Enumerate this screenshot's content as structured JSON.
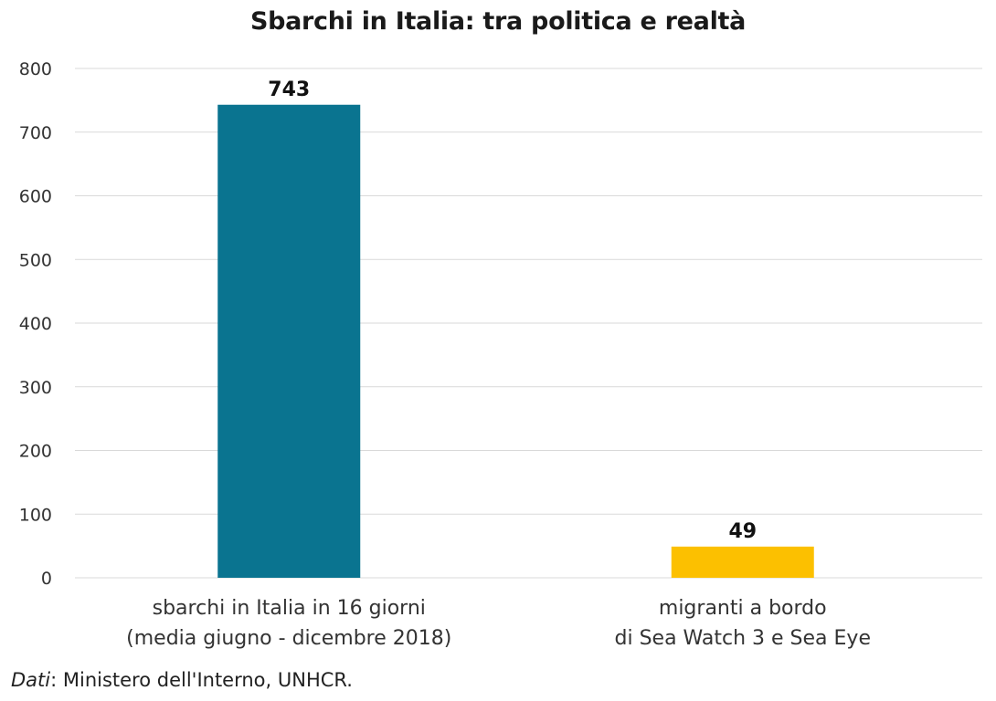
{
  "chart_data": {
    "type": "bar",
    "title": "Sbarchi in Italia: tra politica e realtà",
    "categories": [
      [
        "sbarchi in Italia in 16 giorni",
        "(media giugno - dicembre 2018)"
      ],
      [
        "migranti a bordo",
        "di Sea Watch 3 e Sea Eye"
      ]
    ],
    "values": [
      743,
      49
    ],
    "data_labels": [
      "743",
      "49"
    ],
    "bar_colors": [
      "#0a7490",
      "#fcc000"
    ],
    "ylim": [
      0,
      800
    ],
    "yticks": [
      0,
      100,
      200,
      300,
      400,
      500,
      600,
      700,
      800
    ],
    "xlabel": "",
    "ylabel": "",
    "grid": true,
    "legend": "none"
  },
  "source": {
    "prefix": "Dati",
    "text": ": Ministero dell'Interno, UNHCR."
  }
}
